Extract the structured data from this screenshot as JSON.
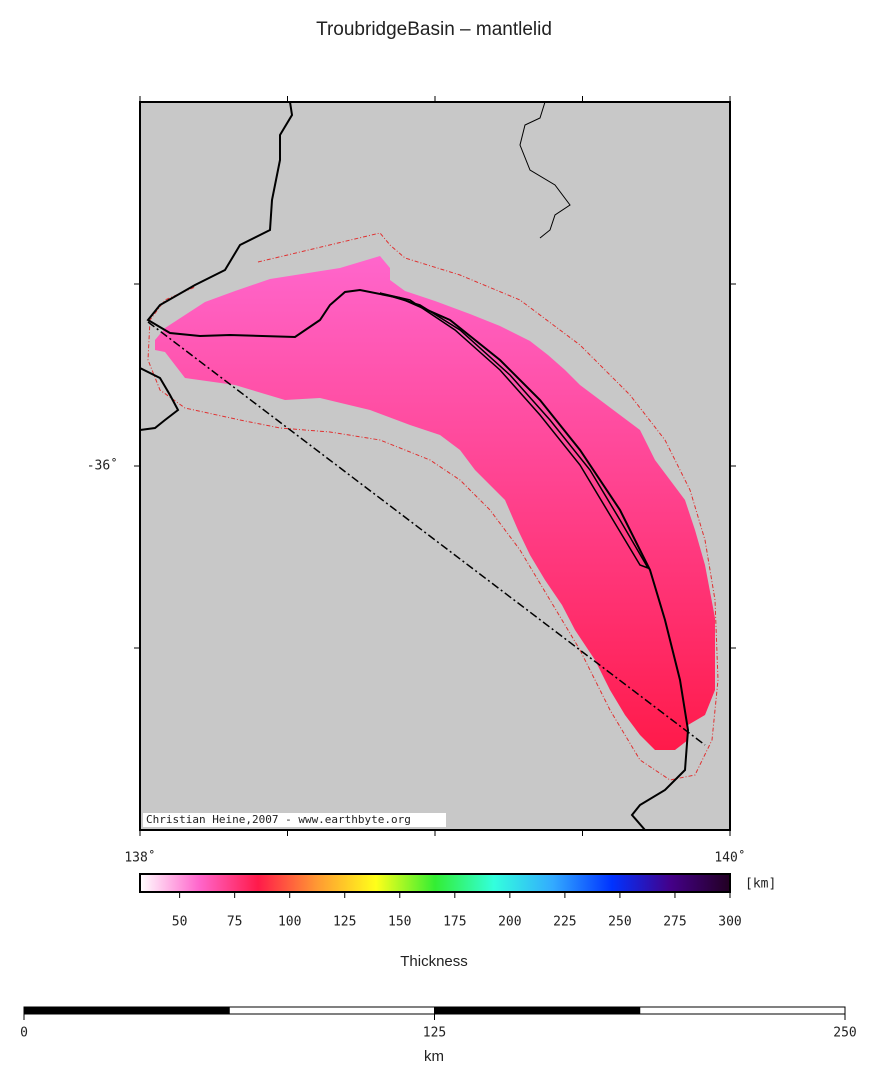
{
  "title": "TroubridgeBasin – mantlelid",
  "map": {
    "xlim": [
      138,
      140
    ],
    "ylim": [
      -37,
      -35
    ],
    "xticks": [
      {
        "value": 138,
        "label": "138˚"
      },
      {
        "value": 140,
        "label": "140˚"
      }
    ],
    "yticks": [
      {
        "value": -36,
        "label": "-36˚"
      }
    ],
    "minor_xticks": [
      138.5,
      139,
      139.5
    ],
    "minor_yticks": [
      -35.5,
      -36.5
    ],
    "credit": "Christian Heine,2007 - www.earthbyte.org"
  },
  "colorbar": {
    "range": [
      32,
      300
    ],
    "ticks": [
      50,
      75,
      100,
      125,
      150,
      175,
      200,
      225,
      250,
      275,
      300
    ],
    "unit": "[km]",
    "label": "Thickness",
    "colors": [
      "#ffffff",
      "#ff66cc",
      "#ff1a4a",
      "#ff9933",
      "#ffff1a",
      "#33ee33",
      "#33ffdd",
      "#33aaff",
      "#0033ff",
      "#440088",
      "#220022"
    ]
  },
  "scalebar": {
    "range": [
      0,
      250
    ],
    "ticks": [
      0,
      125,
      250
    ],
    "unit": "km"
  }
}
